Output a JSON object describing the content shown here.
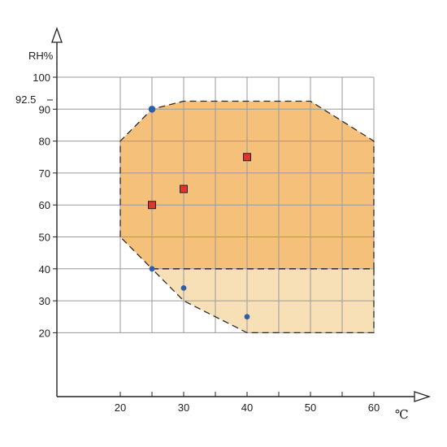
{
  "chart_data": {
    "type": "scatter",
    "ylabel": "RH%",
    "xlabel": "℃",
    "xlim": [
      10,
      60
    ],
    "ylim": [
      0,
      100
    ],
    "x_ticks": [
      20,
      30,
      40,
      50,
      60
    ],
    "y_ticks": [
      20,
      30,
      40,
      50,
      60,
      70,
      80,
      90,
      100
    ],
    "y_extra_label": "92.5",
    "x_grid": [
      20,
      25,
      30,
      35,
      40,
      45,
      50,
      55,
      60
    ],
    "y_grid": [
      20,
      30,
      40,
      50,
      60,
      70,
      80,
      90,
      100
    ],
    "grid": true,
    "regions": [
      {
        "fill": "#f5c07a",
        "outline": [
          [
            20,
            50
          ],
          [
            20,
            80
          ],
          [
            25,
            90
          ],
          [
            30,
            92.5
          ],
          [
            50,
            92.5
          ],
          [
            60,
            80
          ],
          [
            60,
            40
          ],
          [
            25,
            40
          ]
        ]
      },
      {
        "fill": "#f8e0b6",
        "outline": [
          [
            25,
            40
          ],
          [
            60,
            40
          ],
          [
            60,
            20
          ],
          [
            40,
            20
          ],
          [
            30,
            30
          ]
        ]
      }
    ],
    "series": [
      {
        "marker": "square",
        "color": "#e0352b",
        "points": [
          [
            25,
            60
          ],
          [
            30,
            65
          ],
          [
            40,
            75
          ]
        ]
      },
      {
        "marker": "circle",
        "color": "#2f5ea8",
        "points": [
          [
            25,
            90
          ],
          [
            25,
            40
          ],
          [
            30,
            34
          ],
          [
            40,
            25
          ]
        ]
      }
    ]
  }
}
